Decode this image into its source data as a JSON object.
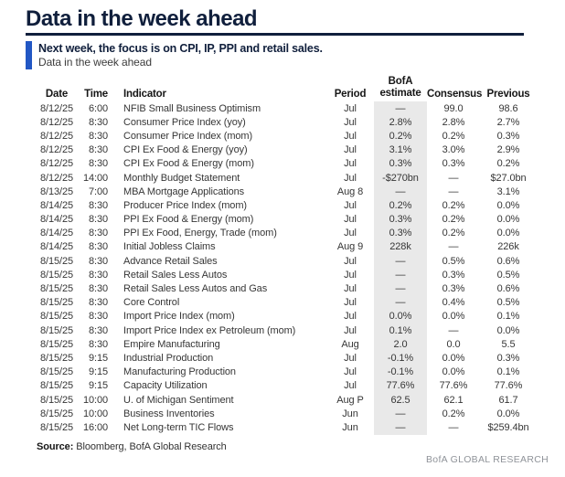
{
  "header": {
    "title": "Data in the week ahead"
  },
  "callout": {
    "lead": "Next week, the focus is on CPI, IP, PPI and retail sales.",
    "subtitle": "Data in the week ahead",
    "accent_color": "#2257c4"
  },
  "table": {
    "columns": {
      "date": "Date",
      "time": "Time",
      "indicator": "Indicator",
      "period": "Period",
      "estimate_line1": "BofA",
      "estimate_line2": "estimate",
      "consensus": "Consensus",
      "previous": "Previous"
    },
    "fields": [
      "date",
      "time",
      "indicator",
      "period",
      "estimate",
      "consensus",
      "previous"
    ],
    "estimate_shade_color": "#e9e9e9",
    "rows": [
      {
        "date": "8/12/25",
        "time": "6:00",
        "indicator": "NFIB Small Business Optimism",
        "period": "Jul",
        "estimate": "—",
        "consensus": "99.0",
        "previous": "98.6"
      },
      {
        "date": "8/12/25",
        "time": "8:30",
        "indicator": "Consumer Price Index (yoy)",
        "period": "Jul",
        "estimate": "2.8%",
        "consensus": "2.8%",
        "previous": "2.7%"
      },
      {
        "date": "8/12/25",
        "time": "8:30",
        "indicator": "Consumer Price Index (mom)",
        "period": "Jul",
        "estimate": "0.2%",
        "consensus": "0.2%",
        "previous": "0.3%"
      },
      {
        "date": "8/12/25",
        "time": "8:30",
        "indicator": "CPI Ex Food & Energy (yoy)",
        "period": "Jul",
        "estimate": "3.1%",
        "consensus": "3.0%",
        "previous": "2.9%"
      },
      {
        "date": "8/12/25",
        "time": "8:30",
        "indicator": "CPI Ex Food & Energy (mom)",
        "period": "Jul",
        "estimate": "0.3%",
        "consensus": "0.3%",
        "previous": "0.2%"
      },
      {
        "date": "8/12/25",
        "time": "14:00",
        "indicator": "Monthly Budget Statement",
        "period": "Jul",
        "estimate": "-$270bn",
        "consensus": "—",
        "previous": "$27.0bn"
      },
      {
        "date": "8/13/25",
        "time": "7:00",
        "indicator": "MBA Mortgage Applications",
        "period": "Aug 8",
        "estimate": "—",
        "consensus": "—",
        "previous": "3.1%"
      },
      {
        "date": "8/14/25",
        "time": "8:30",
        "indicator": "Producer Price Index (mom)",
        "period": "Jul",
        "estimate": "0.2%",
        "consensus": "0.2%",
        "previous": "0.0%"
      },
      {
        "date": "8/14/25",
        "time": "8:30",
        "indicator": "PPI Ex Food & Energy (mom)",
        "period": "Jul",
        "estimate": "0.3%",
        "consensus": "0.2%",
        "previous": "0.0%"
      },
      {
        "date": "8/14/25",
        "time": "8:30",
        "indicator": "PPI Ex Food, Energy, Trade (mom)",
        "period": "Jul",
        "estimate": "0.3%",
        "consensus": "0.2%",
        "previous": "0.0%"
      },
      {
        "date": "8/14/25",
        "time": "8:30",
        "indicator": "Initial Jobless Claims",
        "period": "Aug 9",
        "estimate": "228k",
        "consensus": "—",
        "previous": "226k"
      },
      {
        "date": "8/15/25",
        "time": "8:30",
        "indicator": "Advance Retail Sales",
        "period": "Jul",
        "estimate": "—",
        "consensus": "0.5%",
        "previous": "0.6%"
      },
      {
        "date": "8/15/25",
        "time": "8:30",
        "indicator": "Retail Sales Less Autos",
        "period": "Jul",
        "estimate": "—",
        "consensus": "0.3%",
        "previous": "0.5%"
      },
      {
        "date": "8/15/25",
        "time": "8:30",
        "indicator": "Retail Sales Less Autos and Gas",
        "period": "Jul",
        "estimate": "—",
        "consensus": "0.3%",
        "previous": "0.6%"
      },
      {
        "date": "8/15/25",
        "time": "8:30",
        "indicator": "Core Control",
        "period": "Jul",
        "estimate": "—",
        "consensus": "0.4%",
        "previous": "0.5%"
      },
      {
        "date": "8/15/25",
        "time": "8:30",
        "indicator": "Import Price Index (mom)",
        "period": "Jul",
        "estimate": "0.0%",
        "consensus": "0.0%",
        "previous": "0.1%"
      },
      {
        "date": "8/15/25",
        "time": "8:30",
        "indicator": "Import Price Index ex Petroleum (mom)",
        "period": "Jul",
        "estimate": "0.1%",
        "consensus": "—",
        "previous": "0.0%"
      },
      {
        "date": "8/15/25",
        "time": "8:30",
        "indicator": "Empire Manufacturing",
        "period": "Aug",
        "estimate": "2.0",
        "consensus": "0.0",
        "previous": "5.5"
      },
      {
        "date": "8/15/25",
        "time": "9:15",
        "indicator": "Industrial Production",
        "period": "Jul",
        "estimate": "-0.1%",
        "consensus": "0.0%",
        "previous": "0.3%"
      },
      {
        "date": "8/15/25",
        "time": "9:15",
        "indicator": "Manufacturing Production",
        "period": "Jul",
        "estimate": "-0.1%",
        "consensus": "0.0%",
        "previous": "0.1%"
      },
      {
        "date": "8/15/25",
        "time": "9:15",
        "indicator": "Capacity Utilization",
        "period": "Jul",
        "estimate": "77.6%",
        "consensus": "77.6%",
        "previous": "77.6%"
      },
      {
        "date": "8/15/25",
        "time": "10:00",
        "indicator": "U. of Michigan Sentiment",
        "period": "Aug P",
        "estimate": "62.5",
        "consensus": "62.1",
        "previous": "61.7"
      },
      {
        "date": "8/15/25",
        "time": "10:00",
        "indicator": "Business Inventories",
        "period": "Jun",
        "estimate": "—",
        "consensus": "0.2%",
        "previous": "0.0%"
      },
      {
        "date": "8/15/25",
        "time": "16:00",
        "indicator": "Net Long-term TIC Flows",
        "period": "Jun",
        "estimate": "—",
        "consensus": "—",
        "previous": "$259.4bn"
      }
    ]
  },
  "footer": {
    "source_label": "Source:",
    "source_text": "Bloomberg, BofA Global Research",
    "brand": "BofA GLOBAL RESEARCH"
  },
  "colors": {
    "navy": "#101f3c",
    "accent_blue": "#2257c4",
    "estimate_shade": "#e9e9e9",
    "brand_gray": "#8f9399"
  }
}
